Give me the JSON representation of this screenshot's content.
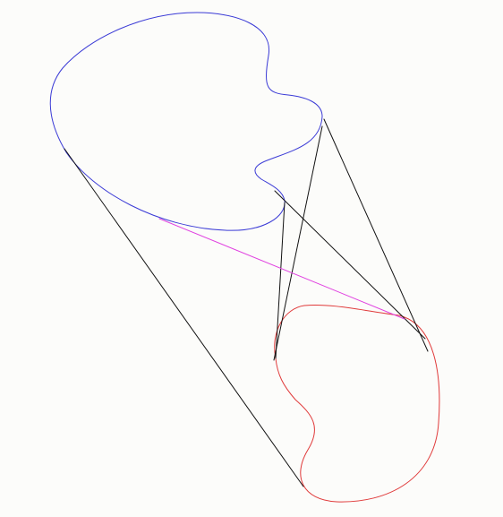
{
  "colors": {
    "background": "#fcfcfa",
    "shape_upper": "#3b3bd6",
    "shape_lower": "#e03a3a",
    "tangent_lines": "#111111",
    "highlight_line": "#e040e0"
  },
  "diagram": {
    "shapes": [
      {
        "name": "upper-blue-shape",
        "color_key": "shape_upper"
      },
      {
        "name": "lower-red-shape",
        "color_key": "shape_lower"
      }
    ],
    "line_count": 6,
    "highlighted_line_count": 1
  }
}
